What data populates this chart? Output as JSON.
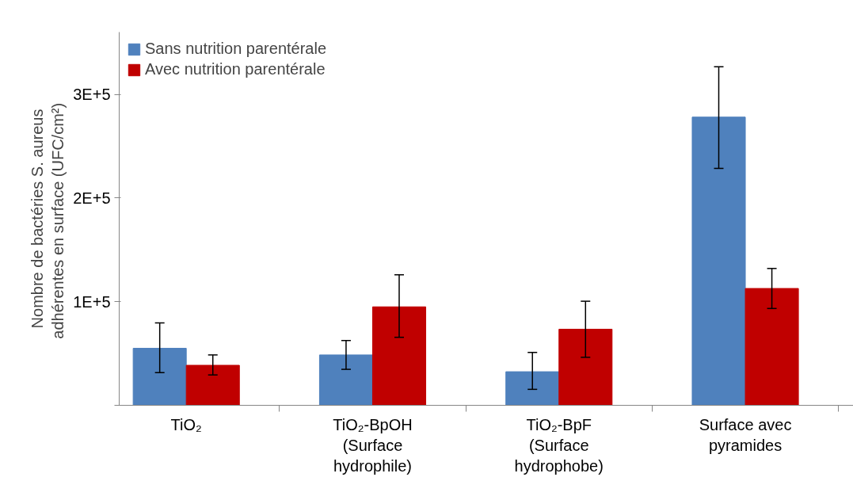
{
  "chart_data": {
    "type": "bar",
    "ylabel": "Nombre de bactéries S. aureus\nadhérentes en surface  (UFC/cm²)",
    "categories": [
      "TiO₂",
      "TiO₂-BpOH\n(Surface\nhydrophile)",
      "TiO₂-BpF\n(Surface\nhydrophobe)",
      "Surface avec\npyramides"
    ],
    "series": [
      {
        "name": "Sans nutrition parentérale",
        "color": "#4f81bd",
        "values": [
          55000,
          48600,
          32400,
          278000
        ],
        "errors": [
          [
            31600,
            79500
          ],
          [
            34700,
            62500
          ],
          [
            15400,
            51000
          ],
          [
            228600,
            326600
          ]
        ]
      },
      {
        "name": "Avec nutrition parentérale",
        "color": "#c00000",
        "values": [
          38600,
          95000,
          73400,
          112700
        ],
        "errors": [
          [
            29300,
            48600
          ],
          [
            65600,
            125900
          ],
          [
            46300,
            100400
          ],
          [
            93400,
            132000
          ]
        ]
      }
    ],
    "ylim": [
      0,
      360000
    ],
    "yticks": [
      {
        "value": 0,
        "label": null
      },
      {
        "value": 100000,
        "label": "1E+5"
      },
      {
        "value": 200000,
        "label": "2E+5"
      },
      {
        "value": 300000,
        "label": "3E+5"
      }
    ],
    "grid": false,
    "legend": "top left"
  }
}
